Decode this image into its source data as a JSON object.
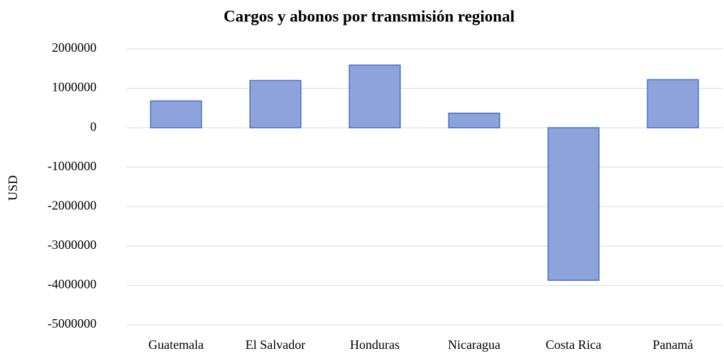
{
  "chart_data": {
    "type": "bar",
    "title": "Cargos y abonos por transmisión regional",
    "y_label": "USD",
    "categories": [
      "Guatemala",
      "El Salvador",
      "Honduras",
      "Nicaragua",
      "Costa Rica",
      "Panamá"
    ],
    "values": [
      680000,
      1200000,
      1590000,
      370000,
      -3870000,
      1220000
    ],
    "color": "#8ea3db",
    "edge_color": "#4472c4",
    "ylim": [
      -5000000,
      2000000
    ],
    "yticks": [
      -5000000,
      -4000000,
      -3000000,
      -2000000,
      -1000000,
      0,
      1000000,
      2000000
    ],
    "grid": true
  }
}
